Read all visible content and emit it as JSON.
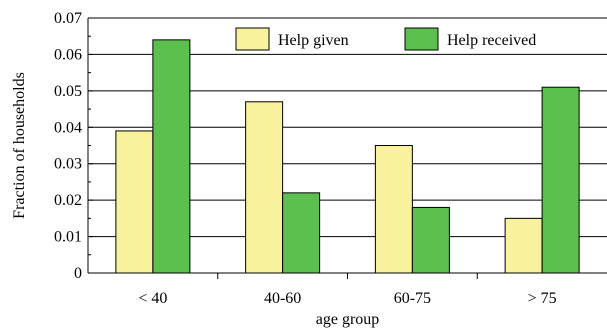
{
  "chart_data": {
    "type": "bar",
    "title": "",
    "xlabel": "age group",
    "ylabel": "Fraction of households",
    "categories": [
      "< 40",
      "40-60",
      "60-75",
      "> 75"
    ],
    "series": [
      {
        "name": "Help given",
        "values": [
          0.039,
          0.047,
          0.035,
          0.015
        ],
        "color": "#f7f29b"
      },
      {
        "name": "Help received",
        "values": [
          0.064,
          0.022,
          0.018,
          0.051
        ],
        "color": "#5cc04e"
      }
    ],
    "ylim": [
      0,
      0.07
    ],
    "yticks": [
      "0",
      "0.01",
      "0.02",
      "0.03",
      "0.04",
      "0.05",
      "0.06",
      "0.07"
    ],
    "grid": "horizontal",
    "legend_position": "top-right"
  }
}
